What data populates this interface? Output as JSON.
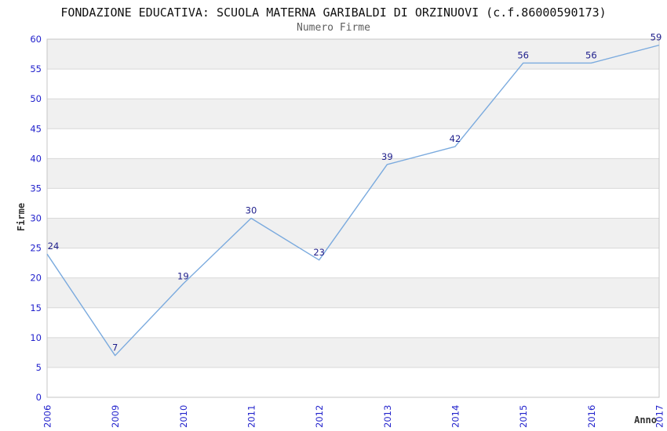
{
  "chart_data": {
    "type": "line",
    "title": "FONDAZIONE EDUCATIVA: SCUOLA MATERNA GARIBALDI DI ORZINUOVI (c.f.86000590173)",
    "subtitle": "Numero Firme",
    "xlabel": "Anno",
    "ylabel": "Firme",
    "categories": [
      "2006",
      "2009",
      "2010",
      "2011",
      "2012",
      "2013",
      "2014",
      "2015",
      "2016",
      "2017"
    ],
    "series": [
      {
        "name": "Numero Firme",
        "values": [
          24,
          7,
          19,
          30,
          23,
          39,
          42,
          56,
          56,
          59
        ]
      }
    ],
    "ylim": [
      0,
      60
    ],
    "ytick_step": 5,
    "grid": true,
    "legend_position": "none",
    "point_labels_visible": true,
    "colors": {
      "line": "#7aaade",
      "tick_label": "#2222cc",
      "point_label": "#20208c",
      "band_gray": "#f0f0f0",
      "band_white": "#ffffff",
      "gridline": "#d8d8d8",
      "border": "#c6c6c6",
      "title": "#111111",
      "subtitle": "#5f5f5f",
      "axis_title": "#333333"
    }
  }
}
